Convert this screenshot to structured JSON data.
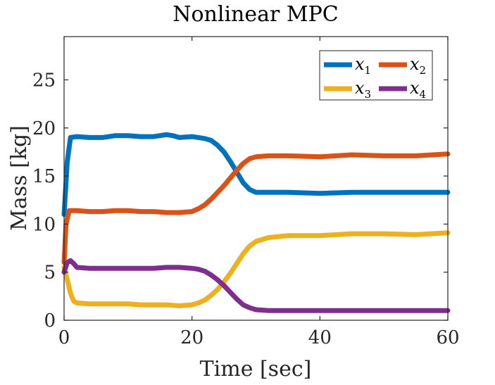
{
  "chart_data": {
    "type": "line",
    "title": "Nonlinear MPC",
    "xlabel": "Time [sec]",
    "ylabel": "Mass [kg]",
    "xlim": [
      0,
      60
    ],
    "ylim": [
      0,
      29.5
    ],
    "xticks": [
      "0",
      "20",
      "40",
      "60"
    ],
    "yticks": [
      "0",
      "5",
      "10",
      "15",
      "20",
      "25"
    ],
    "grid": false,
    "legend_position": "top-right",
    "series": [
      {
        "name": "x1",
        "color": "#0072BD",
        "x": [
          0,
          0.5,
          1,
          2,
          4,
          6,
          8,
          10,
          12,
          14,
          16,
          17,
          18,
          20,
          22,
          23,
          24,
          25,
          26,
          27,
          28,
          29,
          30,
          32,
          35,
          40,
          45,
          50,
          55,
          60
        ],
        "y": [
          11,
          16.5,
          19,
          19.1,
          19.0,
          19.0,
          19.2,
          19.2,
          19.1,
          19.1,
          19.3,
          19.2,
          19.0,
          19.1,
          18.9,
          18.7,
          18.2,
          17.5,
          16.5,
          15.4,
          14.3,
          13.6,
          13.3,
          13.3,
          13.3,
          13.2,
          13.3,
          13.3,
          13.3,
          13.3
        ]
      },
      {
        "name": "x2",
        "color": "#D95319",
        "x": [
          0,
          0.3,
          0.8,
          2,
          4,
          6,
          8,
          10,
          12,
          14,
          16,
          18,
          20,
          21,
          22,
          23,
          24,
          25,
          26,
          27,
          28,
          29,
          30,
          32,
          35,
          40,
          45,
          50,
          55,
          60
        ],
        "y": [
          6,
          10,
          11.4,
          11.4,
          11.3,
          11.3,
          11.4,
          11.4,
          11.3,
          11.3,
          11.2,
          11.2,
          11.3,
          11.6,
          12.0,
          12.6,
          13.3,
          14.0,
          14.8,
          15.6,
          16.3,
          16.8,
          17.0,
          17.1,
          17.1,
          17.0,
          17.2,
          17.1,
          17.1,
          17.3
        ]
      },
      {
        "name": "x3",
        "color": "#EDB120",
        "x": [
          0,
          0.4,
          1,
          1.5,
          2,
          4,
          6,
          8,
          10,
          12,
          14,
          16,
          18,
          20,
          21,
          22,
          23,
          24,
          25,
          26,
          27,
          28,
          29,
          30,
          32,
          35,
          40,
          45,
          50,
          55,
          60
        ],
        "y": [
          5.5,
          4.5,
          2.8,
          2.0,
          1.8,
          1.7,
          1.7,
          1.7,
          1.7,
          1.6,
          1.6,
          1.6,
          1.5,
          1.6,
          1.8,
          2.1,
          2.6,
          3.2,
          4.0,
          4.9,
          5.9,
          6.9,
          7.7,
          8.2,
          8.6,
          8.8,
          8.8,
          9.0,
          9.0,
          8.9,
          9.1
        ]
      },
      {
        "name": "x4",
        "color": "#7E2F8E",
        "x": [
          0,
          0.5,
          1,
          1.5,
          2,
          4,
          6,
          8,
          10,
          12,
          14,
          16,
          18,
          20,
          21,
          22,
          23,
          24,
          25,
          26,
          27,
          28,
          29,
          30,
          32,
          35,
          40,
          45,
          50,
          55,
          60
        ],
        "y": [
          5.0,
          6.0,
          6.2,
          5.9,
          5.5,
          5.4,
          5.4,
          5.4,
          5.4,
          5.4,
          5.4,
          5.5,
          5.5,
          5.4,
          5.3,
          5.1,
          4.7,
          4.2,
          3.6,
          2.9,
          2.2,
          1.6,
          1.3,
          1.1,
          1.0,
          1.0,
          1.0,
          1.0,
          1.0,
          1.0,
          1.0
        ]
      }
    ]
  }
}
